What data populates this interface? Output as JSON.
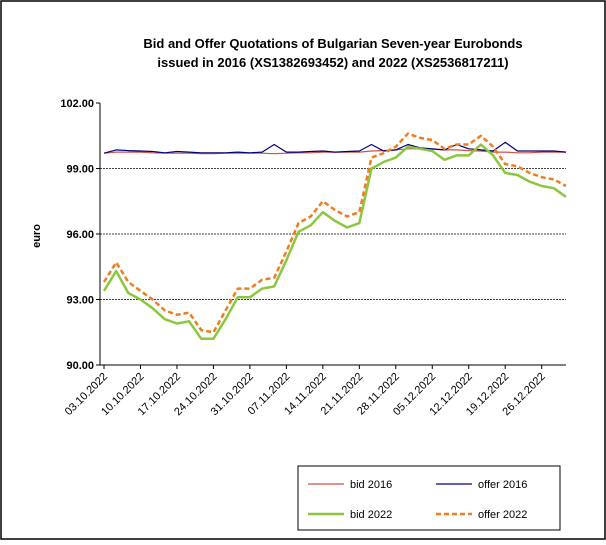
{
  "chart_data": {
    "type": "line",
    "title": [
      "Bid and Offer Quotations of Bulgarian Seven-year  Eurobonds",
      "issued in 2016 (XS1382693452) and 2022 (XS2536817211)"
    ],
    "y_label": "euro",
    "categories": [
      "03.10.2022",
      null,
      null,
      "10.10.2022",
      null,
      null,
      "17.10.2022",
      null,
      null,
      "24.10.2022",
      null,
      null,
      "31.10.2022",
      null,
      null,
      "07.11.2022",
      null,
      null,
      "14.11.2022",
      null,
      null,
      "21.11.2022",
      null,
      null,
      "28.11.2022",
      null,
      null,
      "05.12.2022",
      null,
      null,
      "12.12.2022",
      null,
      null,
      "19.12.2022",
      null,
      null,
      "26.12.2022",
      null,
      null
    ],
    "series": [
      {
        "name": "bid 2016",
        "color": "#d0504a",
        "dash": false,
        "width": 1.2,
        "values": [
          99.7,
          99.75,
          99.75,
          99.75,
          99.72,
          99.7,
          99.7,
          99.7,
          99.68,
          99.68,
          99.7,
          99.7,
          99.7,
          99.7,
          99.68,
          99.7,
          99.72,
          99.72,
          99.75,
          99.75,
          99.75,
          99.75,
          99.8,
          99.82,
          99.85,
          99.9,
          99.9,
          99.88,
          99.85,
          99.85,
          99.82,
          99.8,
          99.75,
          99.75,
          99.72,
          99.72,
          99.75,
          99.75,
          99.75
        ]
      },
      {
        "name": "offer 2016",
        "color": "#000080",
        "dash": false,
        "width": 1.2,
        "values": [
          99.7,
          99.85,
          99.82,
          99.8,
          99.78,
          99.72,
          99.78,
          99.75,
          99.72,
          99.72,
          99.72,
          99.75,
          99.72,
          99.75,
          100.1,
          99.75,
          99.75,
          99.78,
          99.8,
          99.75,
          99.78,
          99.8,
          100.1,
          99.8,
          99.85,
          100.1,
          99.95,
          99.9,
          99.85,
          100.1,
          99.9,
          99.85,
          99.8,
          100.2,
          99.8,
          99.8,
          99.8,
          99.8,
          99.75
        ]
      },
      {
        "name": "bid 2022",
        "color": "#8cc63e",
        "dash": false,
        "width": 2.5,
        "values": [
          93.4,
          94.3,
          93.3,
          93.0,
          92.6,
          92.1,
          91.9,
          92.0,
          91.2,
          91.2,
          92.1,
          93.1,
          93.1,
          93.5,
          93.6,
          94.8,
          96.1,
          96.4,
          97.0,
          96.6,
          96.3,
          96.5,
          99.0,
          99.3,
          99.5,
          100.0,
          99.9,
          99.8,
          99.4,
          99.6,
          99.6,
          100.1,
          99.6,
          98.8,
          98.7,
          98.4,
          98.2,
          98.1,
          97.7
        ]
      },
      {
        "name": "offer 2022",
        "color": "#f07c20",
        "dash": true,
        "width": 2.5,
        "values": [
          93.8,
          94.7,
          93.8,
          93.4,
          93.0,
          92.5,
          92.3,
          92.4,
          91.6,
          91.5,
          92.5,
          93.5,
          93.5,
          93.9,
          94.0,
          95.2,
          96.5,
          96.8,
          97.5,
          97.1,
          96.8,
          97.0,
          99.5,
          99.7,
          100.0,
          100.6,
          100.4,
          100.3,
          99.9,
          100.1,
          100.1,
          100.5,
          100.0,
          99.2,
          99.1,
          98.8,
          98.6,
          98.5,
          98.2
        ]
      }
    ],
    "ylim": [
      90,
      102
    ],
    "yticks": [
      {
        "value": 90,
        "label": "90.00"
      },
      {
        "value": 93,
        "label": "93.00"
      },
      {
        "value": 96,
        "label": "96.00"
      },
      {
        "value": 99,
        "label": "99.00"
      },
      {
        "value": 102,
        "label": "102.00"
      }
    ],
    "grid": true,
    "legend": "bottom-right"
  }
}
